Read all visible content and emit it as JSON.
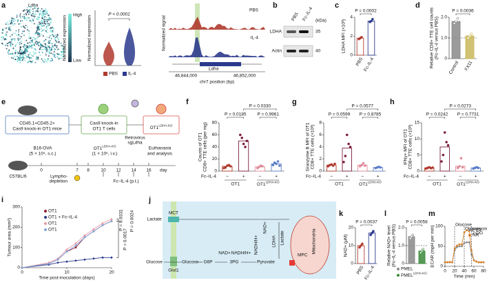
{
  "panels": {
    "a": {
      "label": "a",
      "gene": "Ldha",
      "legend_title": "Normalized expression",
      "legend_high": "High",
      "legend_low": "Low",
      "violin_ylabel": "Normalized expression",
      "p": "P < 0.0001",
      "groups": [
        "PBS",
        "IL-4"
      ],
      "group_colors": [
        "#b03a2e",
        "#2b3a8c"
      ],
      "track_ylabel": "Normalized signal",
      "tracks": [
        "PBS",
        "IL-4"
      ],
      "gene_track": "Ldha",
      "xticks": [
        "46,844,000",
        "46,852,000"
      ],
      "xlabel": "chr7 position (bp)"
    },
    "b": {
      "label": "b",
      "kda": "(kDa)",
      "lanes": [
        "PBS",
        "Fc–IL-4"
      ],
      "rows": [
        {
          "name": "LDHA",
          "kda": "35"
        },
        {
          "name": "Actin",
          "kda": "40"
        }
      ]
    },
    "c": {
      "label": "c",
      "ylabel": [
        "LDHA MFI (×10³)"
      ],
      "categories": [
        "PBS",
        "Fc–IL-4"
      ],
      "colors": [
        "#b03a2e",
        "#2b3a8c"
      ],
      "values": [
        1.8,
        3.6
      ],
      "points": [
        [
          1.7,
          1.8,
          1.9
        ],
        [
          3.5,
          3.6,
          3.8
        ]
      ],
      "ylim": [
        0,
        4
      ],
      "yticks": [
        0,
        2,
        4
      ],
      "pvalues": [
        "P = 0.0002"
      ]
    },
    "d": {
      "label": "d",
      "ylabel": [
        "Relative CD8+ TTE cell counts",
        "(Fc–IL-4 versus PBS)"
      ],
      "categories": [
        "Control",
        "FX11"
      ],
      "colors": [
        "#8a8a8a",
        "#c9b95a"
      ],
      "filled": true,
      "values": [
        1.8,
        1.1
      ],
      "points": [
        [
          1.7,
          1.8,
          1.95
        ],
        [
          1.0,
          1.1,
          1.2
        ]
      ],
      "refline": 1,
      "ylim": [
        0,
        2
      ],
      "yticks": [
        0,
        {
          "value": 1,
          "label": "1.0"
        },
        {
          "value": 2,
          "label": "2.0"
        }
      ],
      "pvalues": [
        "P = 0.0036"
      ]
    },
    "e": {
      "label": "e",
      "donor": [
        "CD45.1+CD45.2+",
        "Cas9 knock-in OT1 mice"
      ],
      "cells": [
        "Cas9 knock-in",
        "OT1 T cells"
      ],
      "virus": [
        "Retrovirus",
        "sgLdha"
      ],
      "ko": {
        "name": "OT1",
        "sup": "LDHA-KO"
      },
      "tumour": [
        "B16-OVA",
        "(5 × 10⁵, s.c.)"
      ],
      "transfer": [
        {
          "name": "OT1",
          "sup": "LDHA-KO"
        },
        "(1 × 10⁶, i.v.)"
      ],
      "end": [
        "Euthanasia",
        "and analysis"
      ],
      "host": "C57BL/6",
      "lympho": [
        "Lympho-",
        "depletion"
      ],
      "treatment": "Fc–IL-4 (p.t.)",
      "days": [
        "0",
        "7",
        "8",
        "10",
        "12",
        "14",
        "16"
      ],
      "day_unit": "day"
    },
    "f": {
      "label": "f",
      "ylabel": [
        "Counts of OT1",
        "CD8+ TTE cells (per mg)"
      ],
      "groups": [
        "OT1",
        {
          "name": "OT1",
          "sup": "LDHA-KO"
        }
      ],
      "signs": [
        "–",
        "+",
        "–",
        "+"
      ],
      "treatment": "Fc–IL-4",
      "colors": [
        "#b03a2e",
        "#7a1f3d",
        "#e08a9a",
        "#5b7fc7"
      ],
      "values": [
        8,
        50,
        7,
        12
      ],
      "points": [
        [
          5,
          6,
          9,
          10,
          8
        ],
        [
          60,
          55,
          45,
          40,
          50
        ],
        [
          5,
          7,
          9,
          8
        ],
        [
          10,
          14,
          12,
          16,
          9
        ]
      ],
      "ylim": [
        0,
        80
      ],
      "yticks": [
        0,
        20,
        40,
        60,
        80
      ],
      "pvalues": [
        "P = 0.0185",
        "P = 0.0330",
        "P = 0.9961"
      ]
    },
    "g": {
      "label": "g",
      "ylabel": [
        "Granzyme B MFI of OT1",
        "CD8+ TTE cells (×10³)"
      ],
      "groups": [
        "OT1",
        {
          "name": "OT1",
          "sup": "LDHA-KO"
        }
      ],
      "signs": [
        "–",
        "+",
        "–",
        "+"
      ],
      "treatment": "Fc–IL-4",
      "colors": [
        "#b03a2e",
        "#7a1f3d",
        "#e08a9a",
        "#5b7fc7"
      ],
      "values": [
        1,
        3.8,
        1,
        0.6
      ],
      "points": [
        [
          0.8,
          1,
          1.1,
          0.9,
          1.2
        ],
        [
          1.5,
          2.5,
          6,
          4.5,
          4
        ],
        [
          0.8,
          1,
          1.3,
          0.9
        ],
        [
          0.5,
          0.6,
          0.7,
          0.6
        ]
      ],
      "ylim": [
        0,
        8
      ],
      "yticks": [
        0,
        2,
        4,
        6,
        8
      ],
      "pvalues": [
        "P = 0.0599",
        "P = 0.0577",
        "P = 0.8785"
      ]
    },
    "h": {
      "label": "h",
      "ylabel": [
        "IFNγ+ MFI of OT1",
        "CD8+ TTE cells (×10³)"
      ],
      "groups": [
        "OT1",
        {
          "name": "OT1",
          "sup": "LDHA-KO"
        }
      ],
      "signs": [
        "–",
        "+",
        "–",
        "+"
      ],
      "treatment": "Fc–IL-4",
      "colors": [
        "#b03a2e",
        "#7a1f3d",
        "#e08a9a",
        "#5b7fc7"
      ],
      "values": [
        1,
        7.5,
        1.5,
        1
      ],
      "points": [
        [
          0.8,
          1,
          1.2,
          0.9,
          1.1
        ],
        [
          3,
          5,
          12,
          9,
          8
        ],
        [
          1,
          1.5,
          4,
          1.2
        ],
        [
          0.8,
          1,
          1.2,
          1
        ]
      ],
      "ylim": [
        0,
        15
      ],
      "yticks": [
        0,
        5,
        10,
        15
      ],
      "pvalues": [
        "P = 0.0242",
        "P = 0.0273",
        "P = 0.7731"
      ]
    },
    "i": {
      "label": "i",
      "type": "line",
      "ylabel": "Tumour area (mm²)",
      "xlabel": "Time post-inoculation (days)",
      "x": [
        0,
        6,
        8,
        10,
        12,
        14,
        16,
        18,
        20
      ],
      "xlim": [
        0,
        20
      ],
      "xticks": [
        0,
        10,
        20
      ],
      "ylim": [
        0,
        300
      ],
      "yticks": [
        0,
        100,
        200,
        300
      ],
      "series": [
        {
          "name": "OT1",
          "color": "#8b1e2d",
          "values": [
            0,
            20,
            40,
            80,
            100,
            150,
            180,
            210,
            230
          ]
        },
        {
          "name": "OT1 + Fc–IL-4",
          "color": "#2b3a8c",
          "values": [
            0,
            15,
            25,
            30,
            35,
            40,
            45,
            50,
            50
          ]
        },
        {
          "name": "OT1",
          "sup": "LDHA-KO",
          "color": "#e89aa6",
          "values": [
            0,
            25,
            45,
            90,
            120,
            160,
            190,
            220,
            240
          ]
        },
        {
          "name": "OT1",
          "sup": "LDHA-KO",
          "suffix": " + Fc–IL-4",
          "color": "#7fa6d9",
          "values": [
            0,
            20,
            40,
            80,
            110,
            150,
            180,
            210,
            230
          ]
        }
      ],
      "pvalues": [
        "P = 0.0017",
        "P = 0.9331",
        "P = 0.0024"
      ]
    },
    "j": {
      "label": "j",
      "lactate_out": "Lactate",
      "mct": "MCT",
      "glucose_out": "Glucose",
      "glut": "Glut1",
      "glucose_in": "Glucose",
      "g6p": "G6P",
      "nad1": "NAD+",
      "nadh1": "NADH/H+",
      "pg": "3PG",
      "nadh2": "NADH/H+",
      "nad2": "NAD+",
      "pyruvate": "Pyruvate",
      "lactate_in": "Lactate",
      "ldha": "LDHA",
      "mpc": "MPC",
      "mito": "Mitochondria"
    },
    "k": {
      "label": "k",
      "ylabel": [
        "NAD+ (μM)"
      ],
      "categories": [
        "PBS",
        "Fc–IL-4"
      ],
      "colors": [
        "#b03a2e",
        "#2b3a8c"
      ],
      "values": [
        10,
        17
      ],
      "points": [
        [
          9,
          10,
          11
        ],
        [
          16,
          17,
          18
        ]
      ],
      "ylim": [
        0,
        20
      ],
      "yticks": [
        0,
        10,
        20
      ],
      "pvalues": [
        "P = 0.0037"
      ]
    },
    "l": {
      "label": "l",
      "ylabel": [
        "Relative NAD+ level",
        "(Fc–IL-4 versus PBS)"
      ],
      "legend": [
        "PMEL",
        {
          "name": "PMEL",
          "sup": "LDHA-KO"
        }
      ],
      "colors": [
        "#8a8a8a",
        "#3a8a3a"
      ],
      "filled": true,
      "values": [
        1.5,
        0.7
      ],
      "points": [
        [
          1.4,
          1.5,
          1.6
        ],
        [
          0.6,
          0.7,
          0.8
        ]
      ],
      "refline": 1,
      "ylim": [
        0,
        2
      ],
      "yticks": [
        0,
        {
          "value": 1,
          "label": "1.0"
        },
        {
          "value": 2,
          "label": "2.0"
        }
      ],
      "pvalues": [
        "P = 0.0058"
      ]
    },
    "m": {
      "label": "m",
      "type": "line",
      "ylabel": "ECAR (mpH per min)",
      "xlabel": "Time (min)",
      "x": [
        0,
        5,
        10,
        15,
        20,
        25,
        30,
        35,
        40,
        45,
        50,
        55,
        60,
        65,
        70,
        75,
        80
      ],
      "xlim": [
        0,
        80
      ],
      "xticks": [
        0,
        20,
        40,
        60,
        80
      ],
      "ylim": [
        0,
        100
      ],
      "yticks": [
        0,
        50,
        100
      ],
      "annotations": [
        {
          "label": "Glucose",
          "x": 20
        },
        {
          "label": "Oligomycin",
          "x": 40
        },
        {
          "label": "2-DG",
          "x": 55
        }
      ],
      "series": [
        {
          "name": "PBS",
          "color": "#8a8a8a",
          "values": [
            10,
            10,
            10,
            10,
            40,
            48,
            50,
            50,
            58,
            60,
            60,
            30,
            15,
            12,
            10,
            10,
            10
          ]
        },
        {
          "name": "NR",
          "color": "#d9822b",
          "values": [
            10,
            10,
            11,
            10,
            45,
            52,
            55,
            55,
            85,
            90,
            88,
            40,
            15,
            12,
            10,
            10,
            10
          ]
        }
      ]
    }
  }
}
